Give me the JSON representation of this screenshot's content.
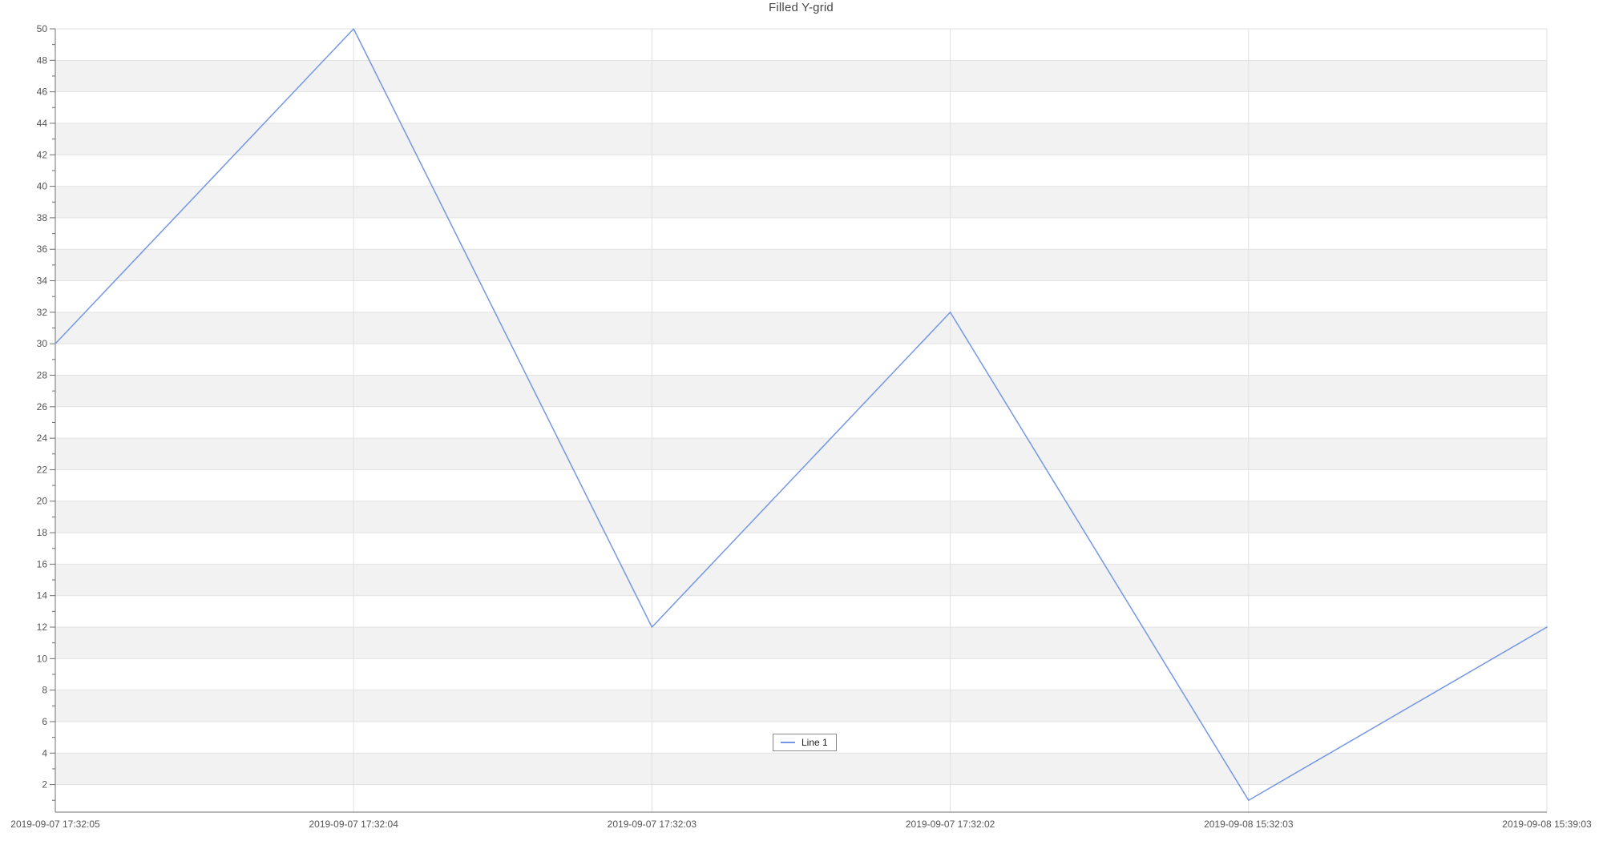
{
  "chart_data": {
    "type": "line",
    "title": "Filled Y-grid",
    "categories": [
      "2019-09-07 17:32:05",
      "2019-09-07 17:32:04",
      "2019-09-07 17:32:03",
      "2019-09-07 17:32:02",
      "2019-09-08 15:32:03",
      "2019-09-08 15:39:03"
    ],
    "series": [
      {
        "name": "Line 1",
        "values": [
          30,
          50,
          12,
          32,
          1,
          12
        ],
        "color": "#7497e5"
      }
    ],
    "xlabel": "",
    "ylabel": "",
    "ylim": [
      0.25,
      50
    ],
    "y_tick_step": 2,
    "y_minor_tick_step": 1,
    "y_tick_labels": [
      2,
      4,
      6,
      8,
      10,
      12,
      14,
      16,
      18,
      20,
      22,
      24,
      26,
      28,
      30,
      32,
      34,
      36,
      38,
      40,
      42,
      44,
      46,
      48,
      50
    ],
    "grid": {
      "horizontal": true,
      "vertical": true,
      "filled_y_bands": true,
      "band_pairs_gray": [
        [
          2,
          4
        ],
        [
          6,
          8
        ],
        [
          10,
          12
        ],
        [
          14,
          16
        ],
        [
          18,
          20
        ],
        [
          22,
          24
        ],
        [
          26,
          28
        ],
        [
          30,
          32
        ],
        [
          34,
          36
        ],
        [
          38,
          40
        ],
        [
          42,
          44
        ],
        [
          46,
          48
        ]
      ]
    },
    "legend": {
      "position": "bottom-center",
      "entries": [
        "Line 1"
      ]
    },
    "colors": {
      "band_fill": "#f2f2f2",
      "h_gridline": "#e2e2e2",
      "v_gridline": "#e0e0e0",
      "axis_line": "#6f6f6f",
      "tick_mark": "#6f6f6f",
      "tick_label": "#545454",
      "title": "#464646",
      "legend_border": "#8a8a8a",
      "series_line": "#7497e5"
    }
  }
}
